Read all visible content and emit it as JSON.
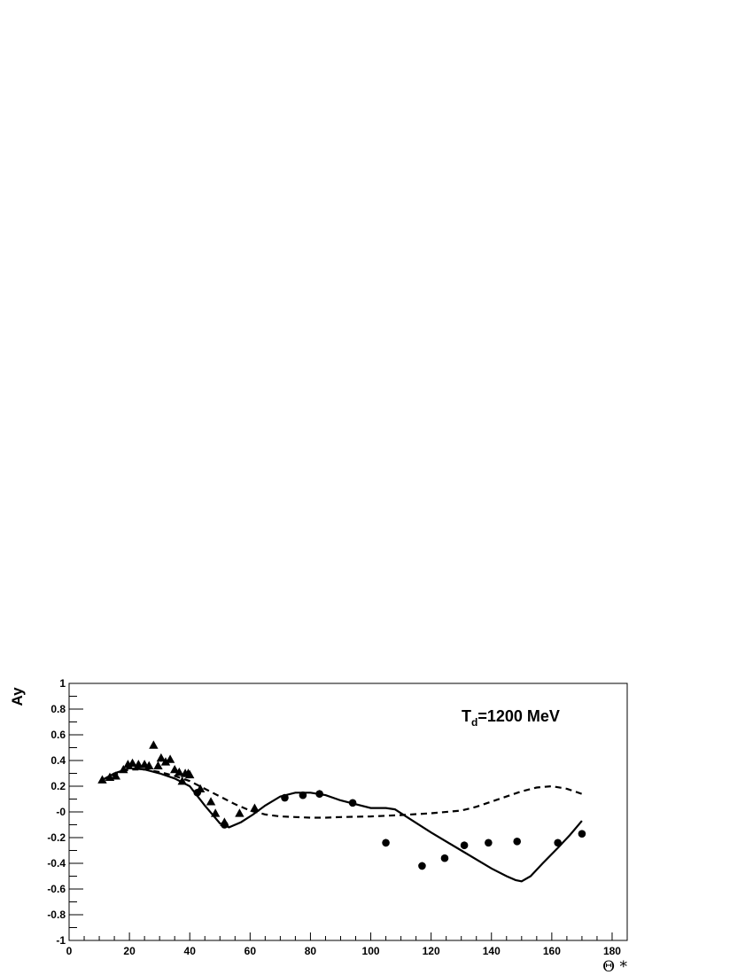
{
  "chart_data": {
    "type": "scatter",
    "xlabel": "Θ *",
    "ylabel": "Ay",
    "xlim": [
      0,
      185
    ],
    "ylim": [
      -1,
      1
    ],
    "grid": false,
    "x_ticks": [
      0,
      20,
      40,
      60,
      80,
      100,
      120,
      140,
      160,
      180
    ],
    "y_ticks": [
      -1,
      -0.8,
      -0.6,
      -0.4,
      -0.2,
      0,
      0.2,
      0.4,
      0.6,
      0.8,
      1
    ],
    "x_tick_labels": [
      "0",
      "20",
      "40",
      "60",
      "80",
      "100",
      "120",
      "140",
      "160",
      "180"
    ],
    "y_tick_labels": [
      "-1",
      "-0.8",
      "-0.6",
      "-0.4",
      "-0.2",
      "-0",
      "0.2",
      "0.4",
      "0.6",
      "0.8",
      "1"
    ],
    "annotation": {
      "main": "T",
      "sub": "d",
      "rest": "=1200 MeV"
    },
    "series": [
      {
        "kind": "points",
        "marker": "triangle",
        "x": [
          11,
          13.5,
          15.5,
          18,
          19.5,
          21,
          23,
          25,
          26.5,
          28,
          29.5,
          30.5,
          32,
          33.5,
          35,
          36.5,
          37.5,
          38.5,
          39.5,
          40,
          43.5,
          47,
          48.5,
          51.5,
          56.5,
          61.5
        ],
        "y": [
          0.25,
          0.27,
          0.28,
          0.33,
          0.37,
          0.38,
          0.37,
          0.37,
          0.36,
          0.52,
          0.36,
          0.42,
          0.39,
          0.41,
          0.33,
          0.31,
          0.24,
          0.3,
          0.3,
          0.29,
          0.18,
          0.08,
          -0.01,
          -0.08,
          -0.01,
          0.03
        ],
        "yerr": [
          0.01,
          0.01,
          0.01,
          0.015,
          0.015,
          0.015,
          0.015,
          0.015,
          0.015,
          0.02,
          0.015,
          0.03,
          0.02,
          0.02,
          0.02,
          0.02,
          0.02,
          0.02,
          0.02,
          0.02,
          0.015,
          0.015,
          0.015,
          0.015,
          0.015,
          0.02
        ]
      },
      {
        "kind": "points",
        "marker": "circle",
        "x": [
          42.5,
          51.5,
          71.5,
          77.5,
          83,
          94,
          105,
          117,
          124.5,
          131,
          139,
          148.5,
          162,
          170
        ],
        "y": [
          0.15,
          -0.1,
          0.11,
          0.13,
          0.14,
          0.07,
          -0.24,
          -0.42,
          -0.36,
          -0.26,
          -0.24,
          -0.23,
          -0.24,
          -0.17
        ],
        "yerr": [
          0.015,
          0.02,
          0.015,
          0.015,
          0.03,
          0.015,
          0.03,
          0.03,
          0.02,
          0.03,
          0.015,
          0.015,
          0.015,
          0.015
        ]
      },
      {
        "kind": "curve",
        "style": "solid",
        "x": [
          11,
          15,
          20,
          25,
          30,
          35,
          40,
          45,
          50,
          53,
          57,
          61,
          65,
          70,
          75,
          80,
          85,
          90,
          95,
          100,
          105,
          108,
          112,
          120,
          130,
          140,
          145,
          148,
          150,
          153,
          157,
          162,
          166,
          170
        ],
        "y": [
          0.25,
          0.3,
          0.34,
          0.33,
          0.3,
          0.26,
          0.2,
          0.05,
          -0.09,
          -0.12,
          -0.08,
          -0.02,
          0.05,
          0.12,
          0.15,
          0.15,
          0.13,
          0.09,
          0.06,
          0.03,
          0.03,
          0.02,
          -0.04,
          -0.16,
          -0.3,
          -0.44,
          -0.5,
          -0.53,
          -0.54,
          -0.5,
          -0.4,
          -0.28,
          -0.18,
          -0.07
        ]
      },
      {
        "kind": "curve",
        "style": "dashed",
        "x": [
          11,
          15,
          20,
          25,
          30,
          35,
          40,
          45,
          50,
          55,
          60,
          65,
          70,
          75,
          80,
          85,
          90,
          100,
          110,
          120,
          130,
          135,
          140,
          145,
          150,
          155,
          160,
          165,
          170
        ],
        "y": [
          0.25,
          0.29,
          0.33,
          0.33,
          0.31,
          0.28,
          0.24,
          0.18,
          0.12,
          0.06,
          0.01,
          -0.02,
          -0.035,
          -0.04,
          -0.045,
          -0.045,
          -0.04,
          -0.035,
          -0.025,
          -0.01,
          0.01,
          0.04,
          0.08,
          0.12,
          0.16,
          0.19,
          0.2,
          0.18,
          0.14
        ]
      }
    ]
  }
}
